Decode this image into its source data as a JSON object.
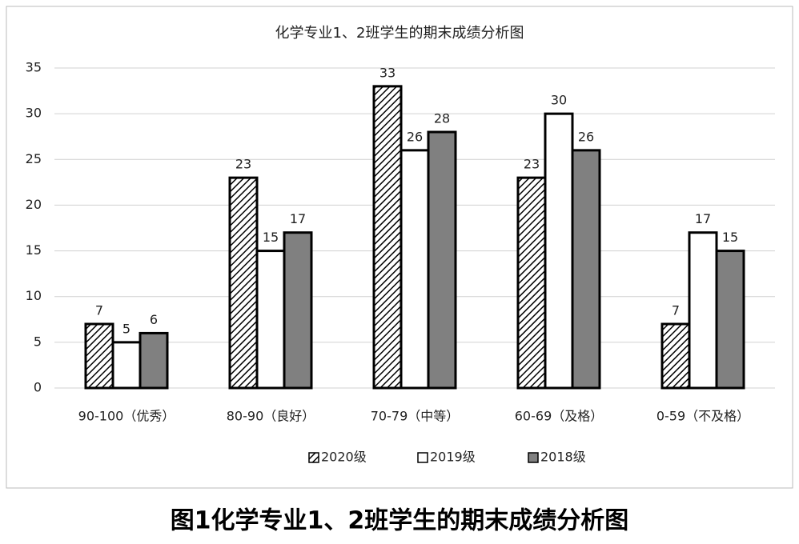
{
  "chart_data": {
    "type": "bar",
    "title": "化学专业1、2班学生的期末成绩分析图",
    "caption": "图1化学专业1、2班学生的期末成绩分析图",
    "categories": [
      "90-100（优秀）",
      "80-90（良好）",
      "70-79（中等）",
      "60-69（及格）",
      "0-59（不及格）"
    ],
    "series": [
      {
        "name": "2020级",
        "color": "#000000",
        "hatch": true,
        "values": [
          7,
          23,
          33,
          23,
          7
        ]
      },
      {
        "name": "2019级",
        "color": "#ffffff",
        "values": [
          5,
          15,
          26,
          30,
          17
        ]
      },
      {
        "name": "2018级",
        "color": "#808080",
        "values": [
          6,
          17,
          28,
          26,
          15
        ]
      }
    ],
    "ylim": [
      0,
      35
    ],
    "yticks": [
      0,
      5,
      10,
      15,
      20,
      25,
      30,
      35
    ],
    "grid": true,
    "legend": "bottom"
  }
}
